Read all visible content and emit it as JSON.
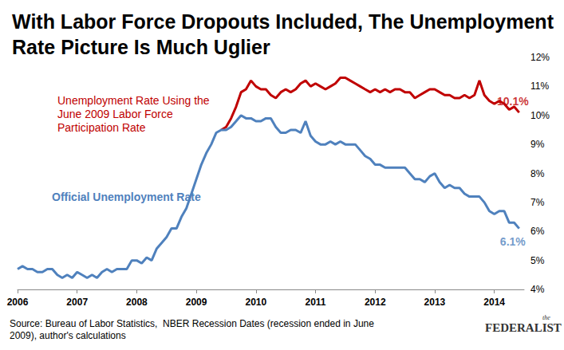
{
  "chart_data": {
    "type": "line",
    "title": "With Labor Force Dropouts Included, The Unemployment Rate Picture Is Much Uglier",
    "source": "Source: Bureau of Labor Statistics,  NBER Recession Dates (recession ended in June 2009), author's calculations",
    "credit": {
      "small": "the",
      "text": "FEDERALIST"
    },
    "x": [
      2006.0,
      2006.083,
      2006.167,
      2006.25,
      2006.333,
      2006.417,
      2006.5,
      2006.583,
      2006.667,
      2006.75,
      2006.833,
      2006.917,
      2007.0,
      2007.083,
      2007.167,
      2007.25,
      2007.333,
      2007.417,
      2007.5,
      2007.583,
      2007.667,
      2007.75,
      2007.833,
      2007.917,
      2008.0,
      2008.083,
      2008.167,
      2008.25,
      2008.333,
      2008.417,
      2008.5,
      2008.583,
      2008.667,
      2008.75,
      2008.833,
      2008.917,
      2009.0,
      2009.083,
      2009.167,
      2009.25,
      2009.333,
      2009.417,
      2009.5,
      2009.583,
      2009.667,
      2009.75,
      2009.833,
      2009.917,
      2010.0,
      2010.083,
      2010.167,
      2010.25,
      2010.333,
      2010.417,
      2010.5,
      2010.583,
      2010.667,
      2010.75,
      2010.833,
      2010.917,
      2011.0,
      2011.083,
      2011.167,
      2011.25,
      2011.333,
      2011.417,
      2011.5,
      2011.583,
      2011.667,
      2011.75,
      2011.833,
      2011.917,
      2012.0,
      2012.083,
      2012.167,
      2012.25,
      2012.333,
      2012.417,
      2012.5,
      2012.583,
      2012.667,
      2012.75,
      2012.833,
      2012.917,
      2013.0,
      2013.083,
      2013.167,
      2013.25,
      2013.333,
      2013.417,
      2013.5,
      2013.583,
      2013.667,
      2013.75,
      2013.833,
      2013.917,
      2014.0,
      2014.083,
      2014.167,
      2014.25,
      2014.333,
      2014.417
    ],
    "series": [
      {
        "name": "Unemployment Rate Using the June 2009 Labor Force Participation Rate",
        "color": "#c00000",
        "values": [
          null,
          null,
          null,
          null,
          null,
          null,
          null,
          null,
          null,
          null,
          null,
          null,
          null,
          null,
          null,
          null,
          null,
          null,
          null,
          null,
          null,
          null,
          null,
          null,
          null,
          null,
          null,
          null,
          null,
          null,
          null,
          null,
          null,
          null,
          null,
          null,
          null,
          null,
          null,
          null,
          null,
          9.5,
          9.6,
          9.9,
          10.3,
          10.8,
          10.9,
          11.2,
          11.0,
          10.9,
          10.9,
          10.7,
          10.6,
          10.8,
          10.9,
          10.8,
          10.9,
          11.1,
          11.2,
          11.0,
          11.1,
          11.0,
          10.9,
          11.0,
          11.1,
          11.3,
          11.3,
          11.2,
          11.1,
          11.0,
          10.9,
          10.8,
          10.9,
          10.8,
          10.9,
          10.8,
          10.9,
          10.9,
          10.8,
          10.8,
          10.6,
          10.7,
          10.8,
          10.9,
          10.9,
          10.8,
          10.7,
          10.7,
          10.6,
          10.6,
          10.7,
          10.6,
          10.7,
          11.2,
          10.7,
          10.5,
          10.4,
          10.5,
          10.4,
          10.2,
          10.3,
          10.1
        ]
      },
      {
        "name": "Official Unemployment Rate",
        "color": "#4f81bd",
        "values": [
          4.7,
          4.8,
          4.7,
          4.7,
          4.6,
          4.6,
          4.7,
          4.7,
          4.5,
          4.4,
          4.5,
          4.4,
          4.6,
          4.5,
          4.4,
          4.5,
          4.4,
          4.6,
          4.7,
          4.6,
          4.7,
          4.7,
          4.7,
          5.0,
          5.0,
          4.9,
          5.1,
          5.0,
          5.4,
          5.6,
          5.8,
          6.1,
          6.1,
          6.5,
          6.8,
          7.3,
          7.8,
          8.3,
          8.7,
          9.0,
          9.4,
          9.5,
          9.5,
          9.6,
          9.8,
          10.0,
          9.9,
          9.9,
          9.8,
          9.8,
          9.9,
          9.9,
          9.6,
          9.4,
          9.4,
          9.5,
          9.5,
          9.4,
          9.8,
          9.3,
          9.1,
          9.0,
          9.0,
          9.1,
          9.0,
          9.1,
          9.0,
          9.0,
          9.0,
          8.8,
          8.6,
          8.5,
          8.3,
          8.3,
          8.2,
          8.2,
          8.2,
          8.2,
          8.2,
          8.0,
          7.8,
          7.8,
          7.7,
          7.9,
          8.0,
          7.7,
          7.5,
          7.6,
          7.5,
          7.5,
          7.3,
          7.2,
          7.2,
          7.2,
          7.0,
          6.7,
          6.6,
          6.7,
          6.7,
          6.3,
          6.3,
          6.1
        ]
      }
    ],
    "annotations": [
      {
        "text": "10.1%",
        "x": 2014.417,
        "y": 10.1
      },
      {
        "text": "6.1%",
        "x": 2014.417,
        "y": 6.1
      }
    ],
    "xlim": [
      2006,
      2014.5
    ],
    "xticks": [
      2006,
      2007,
      2008,
      2009,
      2010,
      2011,
      2012,
      2013,
      2014
    ],
    "ylim": [
      4,
      12
    ],
    "yticks": [
      {
        "value": 4,
        "label": "4%"
      },
      {
        "value": 5,
        "label": "5%"
      },
      {
        "value": 6,
        "label": "6%"
      },
      {
        "value": 7,
        "label": "7%"
      },
      {
        "value": 8,
        "label": "8%"
      },
      {
        "value": 9,
        "label": "9%"
      },
      {
        "value": 10,
        "label": "10%"
      },
      {
        "value": 11,
        "label": "11%"
      },
      {
        "value": 12,
        "label": "12%"
      }
    ],
    "grid": false,
    "marker": "none"
  }
}
